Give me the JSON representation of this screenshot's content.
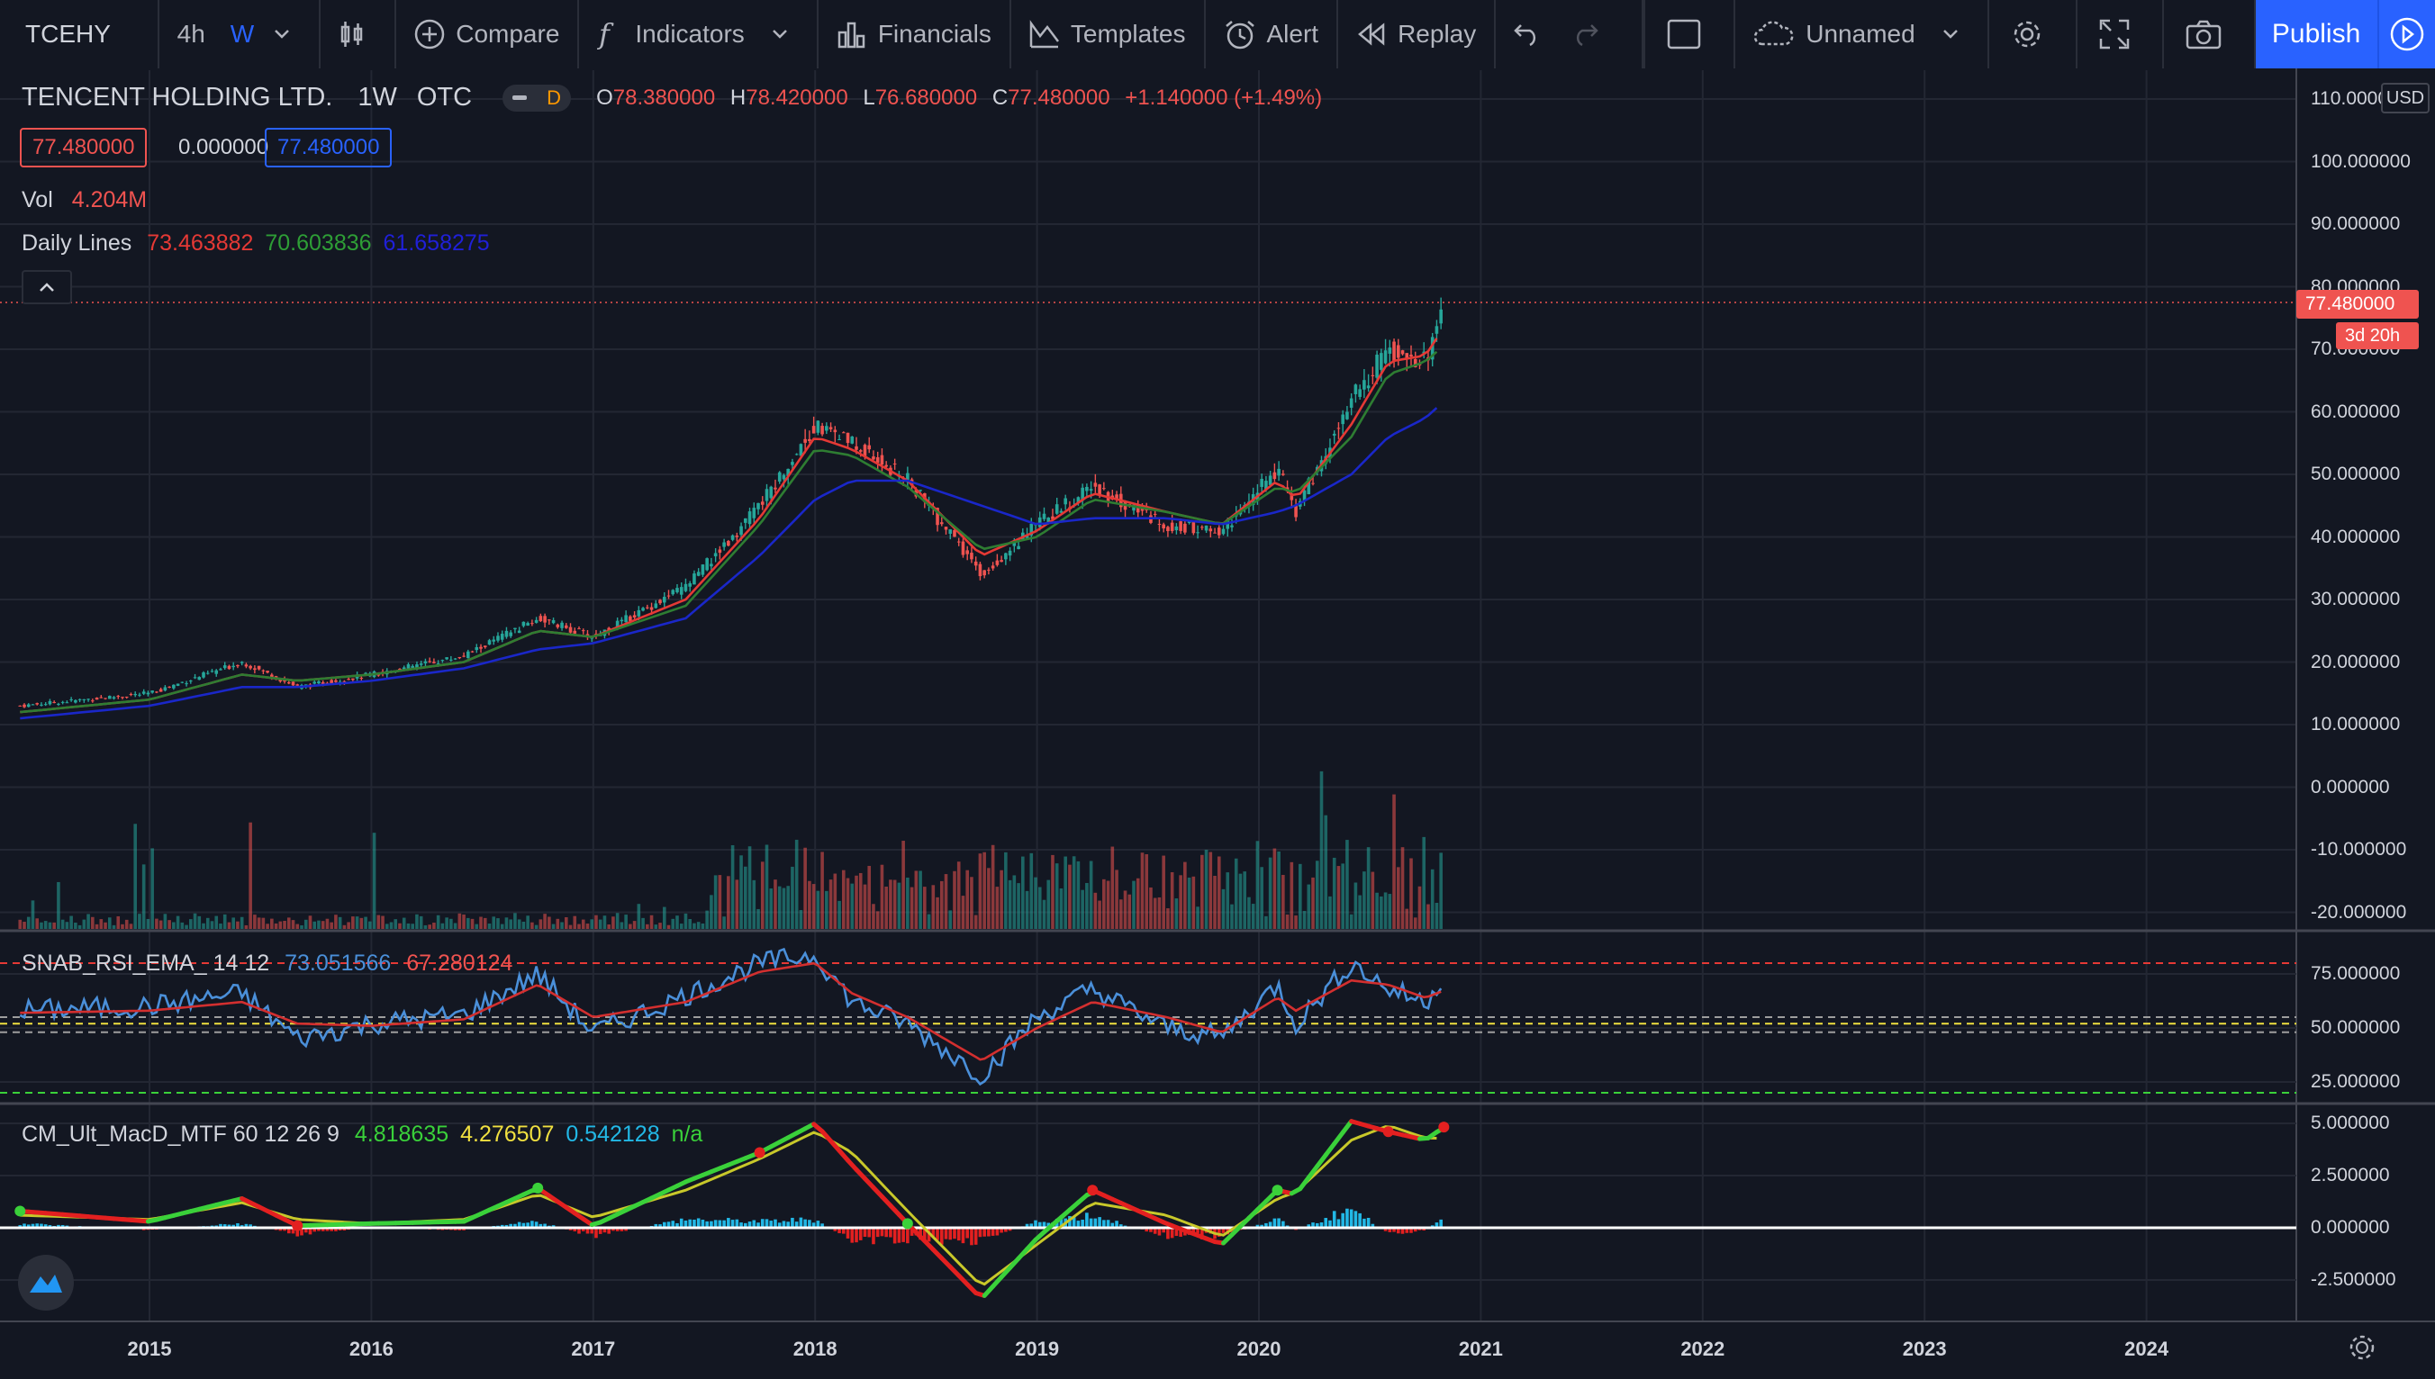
{
  "toolbar": {
    "symbol": "TCEHY",
    "tf_4h": "4h",
    "tf_w": "W",
    "compare": "Compare",
    "indicators": "Indicators",
    "financials": "Financials",
    "templates": "Templates",
    "alert": "Alert",
    "replay": "Replay",
    "layout_name": "Unnamed",
    "publish": "Publish"
  },
  "legend": {
    "title": "TENCENT HOLDING LTD.",
    "interval": "1W",
    "exchange": "OTC",
    "badge": "D",
    "o_label": "O",
    "o_value": "78.380000",
    "h_label": "H",
    "h_value": "78.420000",
    "l_label": "L",
    "l_value": "76.680000",
    "c_label": "C",
    "c_value": "77.480000",
    "change": "+1.140000 (+1.49%)",
    "bid": "77.480000",
    "spread": "0.000000",
    "ask": "77.480000",
    "vol_label": "Vol",
    "vol_value": "4.204M",
    "daily_lines_label": "Daily Lines",
    "daily_lines_values": [
      "73.463882",
      "70.603836",
      "61.658275"
    ]
  },
  "rsi_legend": {
    "name": "SNAB_RSI_EMA_ 14 12",
    "v1": "73.051566",
    "v2": "67.280124"
  },
  "macd_legend": {
    "name": "CM_Ult_MacD_MTF 60 12 26 9",
    "v1": "4.818635",
    "v2": "4.276507",
    "v3": "0.542128",
    "v4": "n/a"
  },
  "price_axis": {
    "currency": "USD",
    "ticks": [
      "110.000000",
      "100.000000",
      "90.000000",
      "80.000000",
      "70.000000",
      "60.000000",
      "50.000000",
      "40.000000",
      "30.000000",
      "20.000000",
      "10.000000",
      "0.000000",
      "-10.000000",
      "-20.000000"
    ],
    "last_price": "77.480000",
    "countdown": "3d 20h"
  },
  "rsi_axis": {
    "ticks": [
      "75.000000",
      "50.000000",
      "25.000000"
    ]
  },
  "macd_axis": {
    "ticks": [
      "5.000000",
      "2.500000",
      "0.000000",
      "-2.500000"
    ]
  },
  "time_axis": {
    "ticks": [
      "2015",
      "2016",
      "2017",
      "2018",
      "2019",
      "2020",
      "2021",
      "2022",
      "2023",
      "2024"
    ]
  },
  "colors": {
    "background": "#131722",
    "grid": "#2a2e39",
    "up": "#26a69a",
    "down": "#ef5350",
    "accent": "#2962ff",
    "ema_fast": "#e53935",
    "ema_mid": "#2e7d32",
    "ema_slow": "#1a27c9",
    "rsi_line": "#4a8fd9",
    "rsi_ema": "#d32f2f",
    "macd_fast": "#3ad13a",
    "macd_signal": "#c8c82a",
    "hist_pos": "#22b8e6",
    "hist_neg": "#e32020"
  },
  "chart_data": [
    {
      "type": "candlestick",
      "title": "TENCENT HOLDING LTD.",
      "interval": "1W",
      "x_range": [
        "2014-06",
        "2024-12"
      ],
      "ylim": [
        -25,
        110
      ],
      "series": [
        {
          "name": "Price",
          "x": [
            "2014-06",
            "2015-01",
            "2015-06",
            "2015-09",
            "2016-01",
            "2016-06",
            "2016-10",
            "2017-01",
            "2017-06",
            "2017-10",
            "2018-01",
            "2018-03",
            "2018-06",
            "2018-10",
            "2019-01",
            "2019-04",
            "2019-08",
            "2019-11",
            "2020-02",
            "2020-03",
            "2020-06",
            "2020-08",
            "2020-10",
            "2020-11"
          ],
          "values": [
            13,
            15,
            20,
            16,
            18,
            21,
            27,
            24,
            32,
            45,
            58,
            55,
            49,
            34,
            42,
            48,
            42,
            41,
            51,
            44,
            62,
            70,
            68,
            77.48
          ]
        },
        {
          "name": "",
          "values": [
            12,
            14,
            18,
            17,
            18,
            20,
            25,
            24,
            30,
            43,
            56,
            54,
            49,
            37,
            41,
            47,
            44,
            42,
            49,
            46,
            58,
            68,
            69,
            73.46
          ]
        },
        {
          "name": "",
          "values": [
            12,
            14,
            18,
            17,
            18,
            20,
            25,
            24,
            29,
            42,
            54,
            53,
            48,
            38,
            40,
            46,
            44,
            42,
            48,
            47,
            56,
            66,
            68,
            70.6
          ]
        },
        {
          "name": "",
          "values": [
            11,
            13,
            16,
            16,
            17,
            19,
            22,
            23,
            27,
            37,
            46,
            49,
            49,
            45,
            42,
            43,
            43,
            42,
            44,
            45,
            50,
            56,
            59,
            61.66
          ]
        }
      ]
    },
    {
      "type": "line",
      "title": "SNAB_RSI_EMA_ 14 12",
      "ylim": [
        10,
        95
      ],
      "x": [
        "2014-06",
        "2015-01",
        "2015-06",
        "2015-09",
        "2016-01",
        "2016-06",
        "2016-10",
        "2017-01",
        "2017-06",
        "2017-10",
        "2018-01",
        "2018-03",
        "2018-06",
        "2018-10",
        "2019-01",
        "2019-04",
        "2019-08",
        "2019-11",
        "2020-02",
        "2020-03",
        "2020-06",
        "2020-08",
        "2020-10",
        "2020-11"
      ],
      "series": [
        {
          "name": "",
          "values": [
            58,
            60,
            66,
            45,
            52,
            56,
            75,
            48,
            65,
            80,
            84,
            62,
            52,
            28,
            55,
            68,
            50,
            46,
            70,
            52,
            80,
            68,
            62,
            73.05
          ]
        },
        {
          "name": "",
          "values": [
            57,
            58,
            62,
            52,
            51,
            54,
            70,
            55,
            62,
            76,
            80,
            66,
            55,
            35,
            50,
            62,
            55,
            48,
            64,
            58,
            72,
            70,
            64,
            67.28
          ]
        }
      ],
      "levels": [
        80,
        55,
        52,
        48,
        20
      ]
    },
    {
      "type": "line",
      "title": "CM_Ult_MacD_MTF 60 12 26 9",
      "ylim": [
        -3.2,
        5.6
      ],
      "x": [
        "2014-06",
        "2015-01",
        "2015-06",
        "2015-09",
        "2016-01",
        "2016-06",
        "2016-10",
        "2017-01",
        "2017-06",
        "2017-10",
        "2018-01",
        "2018-03",
        "2018-06",
        "2018-10",
        "2019-01",
        "2019-04",
        "2019-08",
        "2019-11",
        "2020-02",
        "2020-03",
        "2020-06",
        "2020-08",
        "2020-10",
        "2020-11"
      ],
      "series": [
        {
          "name": "",
          "values": [
            0.8,
            0.3,
            1.4,
            0.1,
            0.2,
            0.3,
            1.9,
            0.1,
            2.2,
            3.6,
            5.0,
            3.0,
            0.2,
            -3.4,
            -0.5,
            1.8,
            0.2,
            -0.8,
            1.8,
            1.6,
            5.1,
            4.6,
            4.2,
            4.82
          ]
        },
        {
          "name": "",
          "values": [
            0.6,
            0.4,
            1.2,
            0.4,
            0.2,
            0.4,
            1.6,
            0.5,
            1.8,
            3.3,
            4.6,
            3.6,
            0.8,
            -2.8,
            -0.8,
            1.2,
            0.6,
            -0.4,
            1.4,
            1.7,
            4.2,
            4.9,
            4.3,
            4.28
          ]
        }
      ],
      "histogram": [
        0.2,
        -0.1,
        0.2,
        -0.3,
        0.0,
        -0.1,
        0.3,
        -0.4,
        0.4,
        0.3,
        0.4,
        -0.6,
        -0.6,
        -0.6,
        0.3,
        0.6,
        -0.4,
        -0.4,
        0.4,
        -0.1,
        0.9,
        -0.3,
        -0.1,
        0.54
      ]
    }
  ]
}
